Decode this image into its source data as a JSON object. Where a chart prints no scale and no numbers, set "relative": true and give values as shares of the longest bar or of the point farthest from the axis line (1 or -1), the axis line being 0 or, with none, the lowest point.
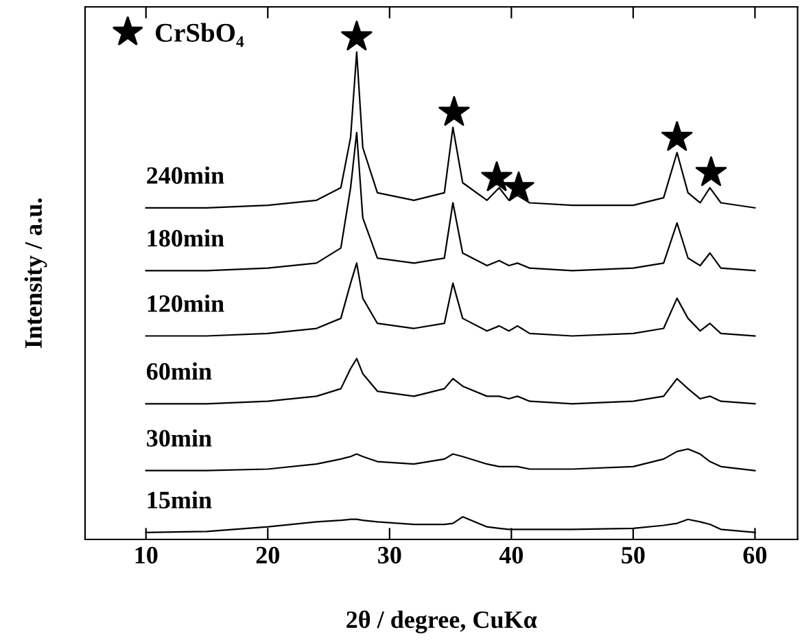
{
  "chart_data": {
    "type": "line",
    "xlabel": "2θ / degree, CuKα",
    "ylabel": "Intensity / a.u.",
    "relative": true,
    "xlim": [
      5,
      63.5
    ],
    "xticks": [
      10,
      20,
      30,
      40,
      50,
      60
    ],
    "tick_labels": "x",
    "grid": false,
    "legend": "top left",
    "line_style": "solid",
    "x": [
      10,
      15,
      20,
      24,
      26,
      26.8,
      27.3,
      27.8,
      29,
      32,
      34.5,
      35.2,
      36,
      38,
      39,
      39.8,
      40.5,
      41.5,
      45,
      50,
      52.5,
      53.6,
      54.5,
      55.5,
      56.3,
      57.2,
      60
    ],
    "series": [
      {
        "name": "15min",
        "color": "#000000",
        "values": [
          0.014,
          0.016,
          0.025,
          0.035,
          0.038,
          0.04,
          0.04,
          0.038,
          0.035,
          0.03,
          0.03,
          0.032,
          0.045,
          0.025,
          0.022,
          0.02,
          0.02,
          0.02,
          0.02,
          0.022,
          0.028,
          0.032,
          0.04,
          0.035,
          0.03,
          0.02,
          0.014
        ]
      },
      {
        "name": "30min",
        "color": "#000000",
        "values": [
          0.137,
          0.137,
          0.14,
          0.15,
          0.16,
          0.165,
          0.17,
          0.165,
          0.155,
          0.15,
          0.16,
          0.17,
          0.165,
          0.15,
          0.145,
          0.145,
          0.145,
          0.14,
          0.14,
          0.145,
          0.16,
          0.175,
          0.18,
          0.17,
          0.155,
          0.145,
          0.137
        ]
      },
      {
        "name": "60min",
        "color": "#000000",
        "values": [
          0.27,
          0.27,
          0.275,
          0.285,
          0.3,
          0.34,
          0.36,
          0.33,
          0.295,
          0.285,
          0.3,
          0.32,
          0.305,
          0.285,
          0.285,
          0.28,
          0.285,
          0.275,
          0.27,
          0.275,
          0.285,
          0.32,
          0.3,
          0.28,
          0.285,
          0.275,
          0.27
        ]
      },
      {
        "name": "120min",
        "color": "#000000",
        "values": [
          0.405,
          0.405,
          0.41,
          0.42,
          0.44,
          0.51,
          0.55,
          0.48,
          0.43,
          0.42,
          0.43,
          0.51,
          0.44,
          0.415,
          0.425,
          0.415,
          0.425,
          0.41,
          0.405,
          0.41,
          0.42,
          0.48,
          0.44,
          0.415,
          0.43,
          0.41,
          0.405
        ]
      },
      {
        "name": "180min",
        "color": "#000000",
        "values": [
          0.535,
          0.535,
          0.54,
          0.55,
          0.58,
          0.7,
          0.81,
          0.64,
          0.56,
          0.55,
          0.56,
          0.67,
          0.57,
          0.545,
          0.555,
          0.545,
          0.55,
          0.54,
          0.535,
          0.54,
          0.55,
          0.63,
          0.56,
          0.545,
          0.57,
          0.54,
          0.535
        ]
      },
      {
        "name": "240min",
        "color": "#000000",
        "values": [
          0.66,
          0.66,
          0.665,
          0.675,
          0.7,
          0.8,
          0.97,
          0.78,
          0.69,
          0.675,
          0.69,
          0.82,
          0.71,
          0.675,
          0.7,
          0.675,
          0.685,
          0.67,
          0.665,
          0.665,
          0.68,
          0.77,
          0.69,
          0.67,
          0.7,
          0.67,
          0.66
        ]
      },
      {
        "name": "CrSbO₄",
        "type": "scatter",
        "marker": "star",
        "color": "#000000",
        "x": [
          27.3,
          35.3,
          38.8,
          40.6,
          53.6,
          56.4
        ],
        "values": [
          1.0,
          0.85,
          0.72,
          0.7,
          0.8,
          0.73
        ]
      }
    ]
  }
}
